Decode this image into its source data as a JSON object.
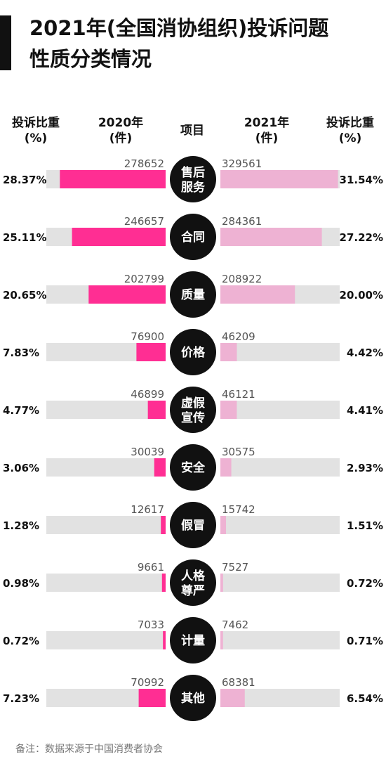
{
  "title_line1": "2021年(全国消协组织)投诉问题",
  "title_line2": "性质分类情况",
  "headers": {
    "share_left": [
      "投诉比重",
      "(%)"
    ],
    "year2020": [
      "2020年",
      "(件)"
    ],
    "item": "项目",
    "year2021": [
      "2021年",
      "(件)"
    ],
    "share_right": [
      "投诉比重",
      "(%)"
    ]
  },
  "source_note": "备注：数据来源于中国消费者协会",
  "colors": {
    "year2020_bar": "#ff2e93",
    "year2021_bar": "#eeb2d3",
    "track": "#e2e2e2",
    "badge": "#111111"
  },
  "chart_data": {
    "type": "bar",
    "orientation": "horizontal-butterfly",
    "categories": [
      [
        "售后",
        "服务"
      ],
      [
        "合同"
      ],
      [
        "质量"
      ],
      [
        "价格"
      ],
      [
        "虚假",
        "宣传"
      ],
      [
        "安全"
      ],
      [
        "假冒"
      ],
      [
        "人格",
        "尊严"
      ],
      [
        "计量"
      ],
      [
        "其他"
      ]
    ],
    "series": [
      {
        "name": "2020年",
        "values": [
          278652,
          246657,
          202799,
          76900,
          46899,
          30039,
          12617,
          9661,
          7033,
          70992
        ],
        "share_labels": [
          "28.37%",
          "25.11%",
          "20.65%",
          "7.83%",
          "4.77%",
          "3.06%",
          "1.28%",
          "0.98%",
          "0.72%",
          "7.23%"
        ],
        "share_percent": [
          28.37,
          25.11,
          20.65,
          7.83,
          4.77,
          3.06,
          1.28,
          0.98,
          0.72,
          7.23
        ]
      },
      {
        "name": "2021年",
        "values": [
          329561,
          284361,
          208922,
          46209,
          46121,
          30575,
          15742,
          7527,
          7462,
          68381
        ],
        "share_labels": [
          "31.54%",
          "27.22%",
          "20.00%",
          "4.42%",
          "4.41%",
          "2.93%",
          "1.51%",
          "0.72%",
          "0.71%",
          "6.54%"
        ],
        "share_percent": [
          31.54,
          27.22,
          20.0,
          4.42,
          4.41,
          2.93,
          1.51,
          0.72,
          0.71,
          6.54
        ]
      }
    ],
    "max_share_percent": 32
  }
}
